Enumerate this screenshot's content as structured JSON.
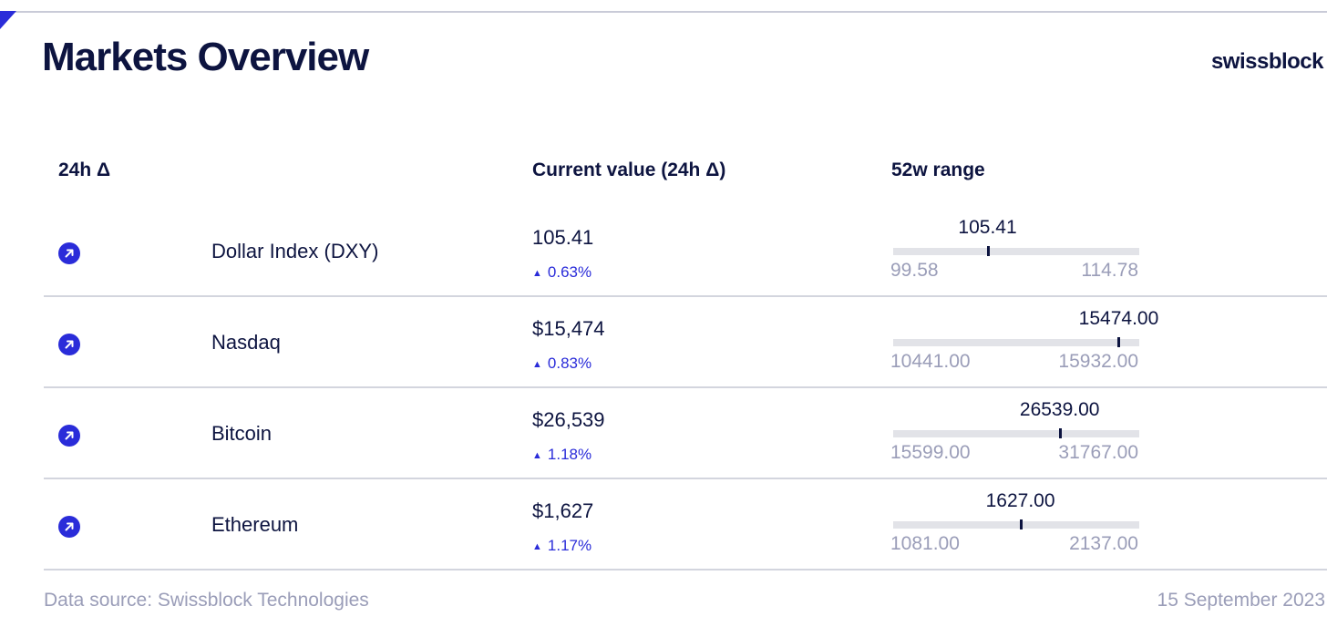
{
  "header": {
    "title": "Markets Overview",
    "brand": "swissblock",
    "accent_color": "#2a2cd9"
  },
  "columns": {
    "delta": "24h Δ",
    "current": "Current value (24h Δ)",
    "range": "52w range"
  },
  "rows": [
    {
      "name": "Dollar Index (DXY)",
      "icon": "arrow-up-right-icon",
      "value": "105.41",
      "change": "0.63%",
      "change_direction": "up",
      "range_current": "105.41",
      "range_min": "99.58",
      "range_max": "114.78",
      "current_num": 105.41,
      "min_num": 99.58,
      "max_num": 114.78
    },
    {
      "name": "Nasdaq",
      "icon": "arrow-up-right-icon",
      "value": "$15,474",
      "change": "0.83%",
      "change_direction": "up",
      "range_current": "15474.00",
      "range_min": "10441.00",
      "range_max": "15932.00",
      "current_num": 15474.0,
      "min_num": 10441.0,
      "max_num": 15932.0
    },
    {
      "name": "Bitcoin",
      "icon": "arrow-up-right-icon",
      "value": "$26,539",
      "change": "1.18%",
      "change_direction": "up",
      "range_current": "26539.00",
      "range_min": "15599.00",
      "range_max": "31767.00",
      "current_num": 26539.0,
      "min_num": 15599.0,
      "max_num": 31767.0
    },
    {
      "name": "Ethereum",
      "icon": "arrow-up-right-icon",
      "value": "$1,627",
      "change": "1.17%",
      "change_direction": "up",
      "range_current": "1627.00",
      "range_min": "1081.00",
      "range_max": "2137.00",
      "current_num": 1627.0,
      "min_num": 1081.0,
      "max_num": 2137.0
    }
  ],
  "footer": {
    "source": "Data source: Swissblock Technologies",
    "date": "15 September 2023"
  }
}
